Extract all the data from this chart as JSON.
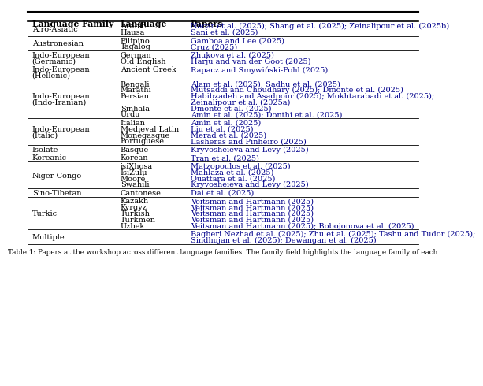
{
  "caption": "Table 1: Papers at the workshop across different language families. The family field highlights the language family of each",
  "header": [
    "Language Family",
    "Language",
    "Papers"
  ],
  "link_color": "#00008B",
  "text_color": "#000000",
  "bg_color": "#FFFFFF",
  "rows": [
    {
      "family": "Afro-Asiatic",
      "entries": [
        {
          "lang": "Arabic",
          "paper": "Nacar et al. (2025); Shang et al. (2025); Zeinalipour et al. (2025b)",
          "link": true
        },
        {
          "lang": "Hausa",
          "paper": "Sani et al. (2025)",
          "link": true
        }
      ]
    },
    {
      "family": "Austronesian",
      "entries": [
        {
          "lang": "Filipino",
          "paper": "Gamboa and Lee (2025)",
          "link": true
        },
        {
          "lang": "Tagalog",
          "paper": "Cruz (2025)",
          "link": true
        }
      ]
    },
    {
      "family": "Indo-European\n(Germanic)",
      "entries": [
        {
          "lang": "German",
          "paper": "Zhukova et al. (2025)",
          "link": true
        },
        {
          "lang": "Old English",
          "paper": "Harju and van der Goot (2025)",
          "link": true
        }
      ]
    },
    {
      "family": "Indo-European\n(Hellenic)",
      "entries": [
        {
          "lang": "Ancient Greek",
          "paper": "Rapacz and Smywiński-Pohl (2025)",
          "link": true
        }
      ]
    },
    {
      "family": "Indo-European\n(Indo-Iranian)",
      "entries": [
        {
          "lang": "Bengali",
          "paper": "Alam et al. (2025); Sadhu et al. (2025)",
          "link": true
        },
        {
          "lang": "Marathi",
          "paper": "Mutsaddi and Choudhary (2025); Dmonte et al. (2025)",
          "link": true
        },
        {
          "lang": "Persian",
          "paper": "Habibzadeh and Asadpour (2025); Mokhtarabadi et al. (2025);",
          "link": true
        },
        {
          "lang": "",
          "paper": "Zeinalipour et al. (2025a)",
          "link": true
        },
        {
          "lang": "Sinhala",
          "paper": "Dmonte et al. (2025)",
          "link": true
        },
        {
          "lang": "Urdu",
          "paper": "Amin et al. (2025); Donthi et al. (2025)",
          "link": true
        }
      ]
    },
    {
      "family": "Indo-European\n(Italic)",
      "entries": [
        {
          "lang": "Italian",
          "paper": "Amin et al. (2025)",
          "link": true
        },
        {
          "lang": "Medieval Latin",
          "paper": "Liu et al. (2025)",
          "link": true
        },
        {
          "lang": "Monégasque",
          "paper": "Merad et al. (2025)",
          "link": true
        },
        {
          "lang": "Portuguese",
          "paper": "Lasheras and Pinheiro (2025)",
          "link": true
        }
      ]
    },
    {
      "family": "Isolate",
      "entries": [
        {
          "lang": "Basque",
          "paper": "Kryvosheieva and Levy (2025)",
          "link": true
        }
      ]
    },
    {
      "family": "Koreanic",
      "entries": [
        {
          "lang": "Korean",
          "paper": "Tran et al. (2025)",
          "link": true
        }
      ]
    },
    {
      "family": "Niger-Congo",
      "entries": [
        {
          "lang": "isiXhosa",
          "paper": "Matzopoulos et al. (2025)",
          "link": true
        },
        {
          "lang": "IsiZulu",
          "paper": "Mahlaza et al. (2025)",
          "link": true
        },
        {
          "lang": "Mooré",
          "paper": "Ouattara et al. (2025)",
          "link": true
        },
        {
          "lang": "Swahili",
          "paper": "Kryvosheieva and Levy (2025)",
          "link": true
        }
      ]
    },
    {
      "family": "Sino-Tibetan",
      "entries": [
        {
          "lang": "Cantonese",
          "paper": "Dai et al. (2025)",
          "link": true
        }
      ]
    },
    {
      "family": "Turkic",
      "entries": [
        {
          "lang": "Kazakh",
          "paper": "Veitsman and Hartmann (2025)",
          "link": true
        },
        {
          "lang": "Kyrgyz",
          "paper": "Veitsman and Hartmann (2025)",
          "link": true
        },
        {
          "lang": "Turkish",
          "paper": "Veitsman and Hartmann (2025)",
          "link": true
        },
        {
          "lang": "Turkmen",
          "paper": "Veitsman and Hartmann (2025)",
          "link": true
        },
        {
          "lang": "Uzbek",
          "paper": "Veitsman and Hartmann (2025); Bobojonova et al. (2025)",
          "link": true
        }
      ]
    },
    {
      "family": "Multiple",
      "entries": [
        {
          "lang": "",
          "paper": "Bagheri Nezhad et al. (2025); Zhu et al. (2025); Tashu and Tudor (2025);",
          "link": true
        },
        {
          "lang": "",
          "paper": "Sindhujan et al. (2025); Dewangan et al. (2025)",
          "link": true
        }
      ]
    }
  ]
}
